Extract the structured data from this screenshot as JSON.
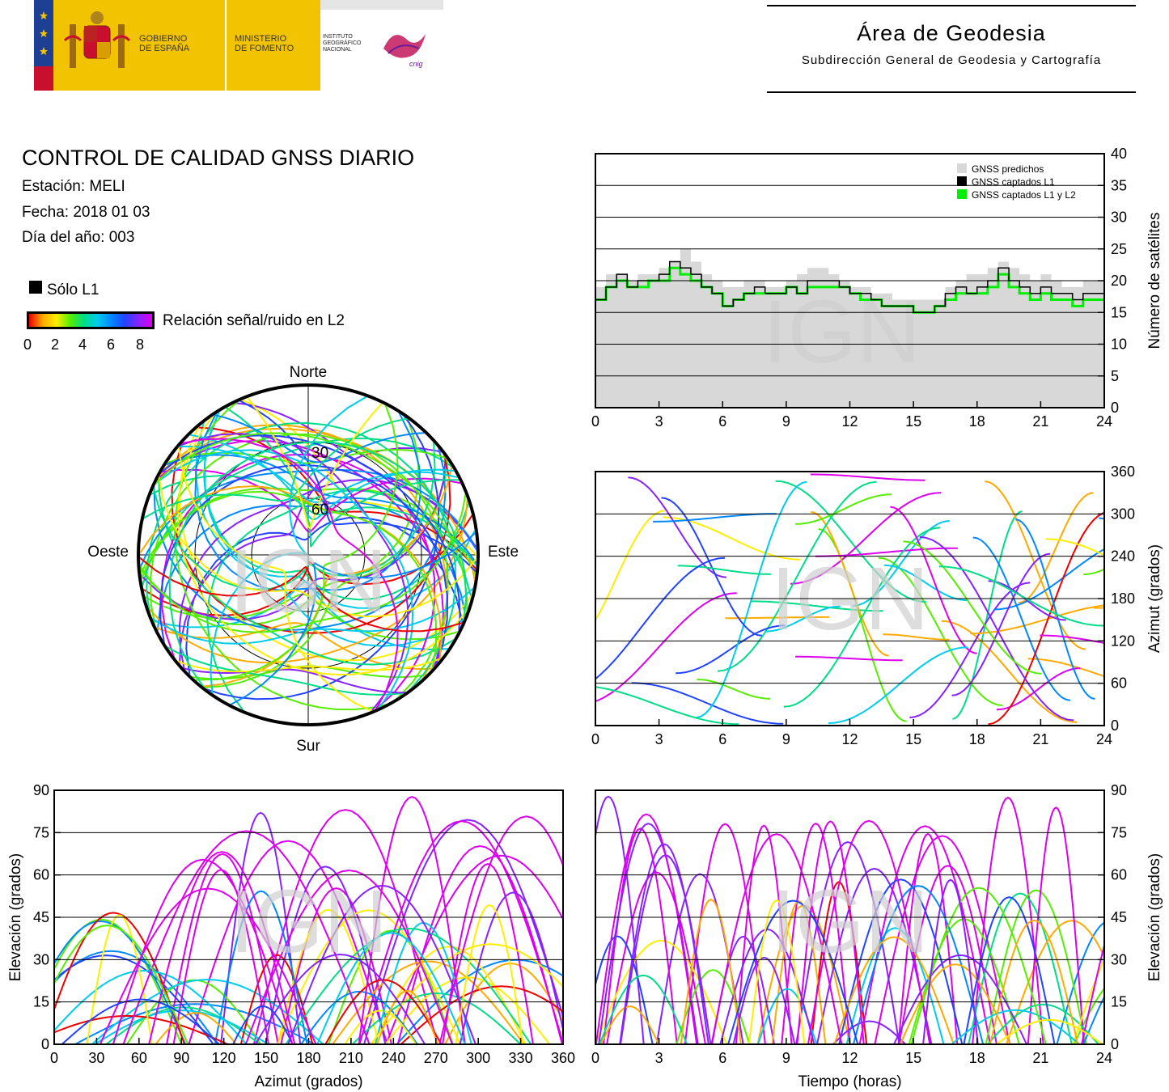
{
  "header": {
    "gov_line1": "GOBIERNO",
    "gov_line2": "DE ESPAÑA",
    "min_line1": "MINISTERIO",
    "min_line2": "DE FOMENTO",
    "ign_line1": "INSTITUTO",
    "ign_line2": "GEOGRÁFICO",
    "ign_line3": "NACIONAL",
    "ign_logo": "cnig",
    "area_title": "Área de Geodesia",
    "area_subtitle": "Subdirección General de Geodesia y Cartografía"
  },
  "info": {
    "title": "CONTROL DE CALIDAD GNSS DIARIO",
    "station": "Estación: MELI",
    "date": "Fecha: 2018 01 03",
    "doy": "Día del año: 003"
  },
  "legend": {
    "l1_only": "Sólo L1",
    "snr_label": "Relación señal/ruido en L2",
    "snr_ticks": [
      "0",
      "2",
      "4",
      "6",
      "8"
    ]
  },
  "watermark": "IGN",
  "colors": {
    "predicted": "#d8d8d8",
    "l1": "#000000",
    "l1l2": "#00ee00",
    "snr_gradient": [
      "#ee0000",
      "#ffaa00",
      "#ffee00",
      "#55ee00",
      "#00dd88",
      "#00ccee",
      "#0088ff",
      "#2244ff",
      "#8822ff",
      "#dd00ee"
    ]
  },
  "chart_data": [
    {
      "type": "line",
      "name_hint": "satellites",
      "x_ticks": [
        "0",
        "3",
        "6",
        "9",
        "12",
        "15",
        "18",
        "21",
        "24"
      ],
      "y_ticks": [
        "0",
        "5",
        "10",
        "15",
        "20",
        "25",
        "30",
        "35",
        "40"
      ],
      "xlim": [
        0,
        24
      ],
      "ylim": [
        0,
        40
      ],
      "ylabel": "Número de satélites",
      "legend_position": "top-right",
      "series": [
        {
          "name": "GNSS predichos",
          "x": [
            0,
            0.5,
            1,
            1.5,
            2,
            2.5,
            3,
            3.5,
            4,
            4.5,
            5,
            5.5,
            6,
            6.5,
            7,
            7.5,
            8,
            8.5,
            9,
            9.5,
            10,
            10.5,
            11,
            11.5,
            12,
            12.5,
            13,
            13.5,
            14,
            14.5,
            15,
            15.5,
            16,
            16.5,
            17,
            17.5,
            18,
            18.5,
            19,
            19.5,
            20,
            20.5,
            21,
            21.5,
            22,
            22.5,
            23,
            23.5,
            24
          ],
          "values": [
            19,
            21,
            21,
            20,
            21,
            21,
            22,
            23,
            25,
            23,
            21,
            20,
            19,
            19,
            20,
            20,
            19,
            19,
            20,
            21,
            22,
            22,
            21,
            20,
            19,
            19,
            18,
            18,
            17,
            17,
            17,
            17,
            17,
            19,
            20,
            21,
            21,
            22,
            23,
            22,
            21,
            20,
            21,
            20,
            19,
            19,
            20,
            20,
            19
          ]
        },
        {
          "name": "GNSS captados L1",
          "x": [
            0,
            0.5,
            1,
            1.5,
            2,
            2.5,
            3,
            3.5,
            4,
            4.5,
            5,
            5.5,
            6,
            6.5,
            7,
            7.5,
            8,
            8.5,
            9,
            9.5,
            10,
            10.5,
            11,
            11.5,
            12,
            12.5,
            13,
            13.5,
            14,
            14.5,
            15,
            15.5,
            16,
            16.5,
            17,
            17.5,
            18,
            18.5,
            19,
            19.5,
            20,
            20.5,
            21,
            21.5,
            22,
            22.5,
            23,
            23.5,
            24
          ],
          "values": [
            17,
            19,
            21,
            19,
            20,
            20,
            21,
            23,
            22,
            21,
            19,
            18,
            16,
            17,
            18,
            19,
            18,
            18,
            19,
            18,
            20,
            20,
            20,
            19,
            18,
            18,
            17,
            16,
            16,
            16,
            15,
            15,
            16,
            18,
            19,
            18,
            19,
            20,
            22,
            20,
            19,
            18,
            19,
            18,
            18,
            17,
            18,
            18,
            17
          ]
        },
        {
          "name": "GNSS captados L1 y L2",
          "x": [
            0,
            0.5,
            1,
            1.5,
            2,
            2.5,
            3,
            3.5,
            4,
            4.5,
            5,
            5.5,
            6,
            6.5,
            7,
            7.5,
            8,
            8.5,
            9,
            9.5,
            10,
            10.5,
            11,
            11.5,
            12,
            12.5,
            13,
            13.5,
            14,
            14.5,
            15,
            15.5,
            16,
            16.5,
            17,
            17.5,
            18,
            18.5,
            19,
            19.5,
            20,
            20.5,
            21,
            21.5,
            22,
            22.5,
            23,
            23.5,
            24
          ],
          "values": [
            17,
            19,
            20,
            19,
            19,
            20,
            20,
            22,
            21,
            20,
            19,
            18,
            16,
            17,
            18,
            18,
            18,
            18,
            19,
            18,
            19,
            19,
            19,
            19,
            18,
            17,
            17,
            16,
            16,
            16,
            15,
            15,
            16,
            17,
            18,
            18,
            18,
            19,
            21,
            19,
            18,
            17,
            18,
            17,
            17,
            16,
            17,
            17,
            17
          ]
        }
      ]
    },
    {
      "type": "scatter",
      "name_hint": "skyplot",
      "labels": {
        "north": "Norte",
        "south": "Sur",
        "east": "Este",
        "west": "Oeste"
      },
      "ring_labels": [
        "30",
        "60"
      ],
      "description_elev_max": 90
    },
    {
      "type": "scatter",
      "name_hint": "azimuth-vs-time",
      "x_ticks": [
        "0",
        "3",
        "6",
        "9",
        "12",
        "15",
        "18",
        "21",
        "24"
      ],
      "y_ticks": [
        "0",
        "60",
        "120",
        "180",
        "240",
        "300",
        "360"
      ],
      "xlim": [
        0,
        24
      ],
      "ylim": [
        0,
        360
      ],
      "ylabel": "Azimut (grados)"
    },
    {
      "type": "scatter",
      "name_hint": "elevation-vs-azimuth",
      "x_ticks": [
        "0",
        "30",
        "60",
        "90",
        "120",
        "150",
        "180",
        "210",
        "240",
        "270",
        "300",
        "330",
        "360"
      ],
      "y_ticks": [
        "0",
        "15",
        "30",
        "45",
        "60",
        "75",
        "90"
      ],
      "xlim": [
        0,
        360
      ],
      "ylim": [
        0,
        90
      ],
      "xlabel": "Azimut (grados)",
      "ylabel": "Elevación (grados)"
    },
    {
      "type": "scatter",
      "name_hint": "elevation-vs-time",
      "x_ticks": [
        "0",
        "3",
        "6",
        "9",
        "12",
        "15",
        "18",
        "21",
        "24"
      ],
      "y_ticks": [
        "0",
        "15",
        "30",
        "45",
        "60",
        "75",
        "90"
      ],
      "xlim": [
        0,
        24
      ],
      "ylim": [
        0,
        90
      ],
      "xlabel": "Tiempo (horas)",
      "ylabel": "Elevación (grados)"
    }
  ]
}
